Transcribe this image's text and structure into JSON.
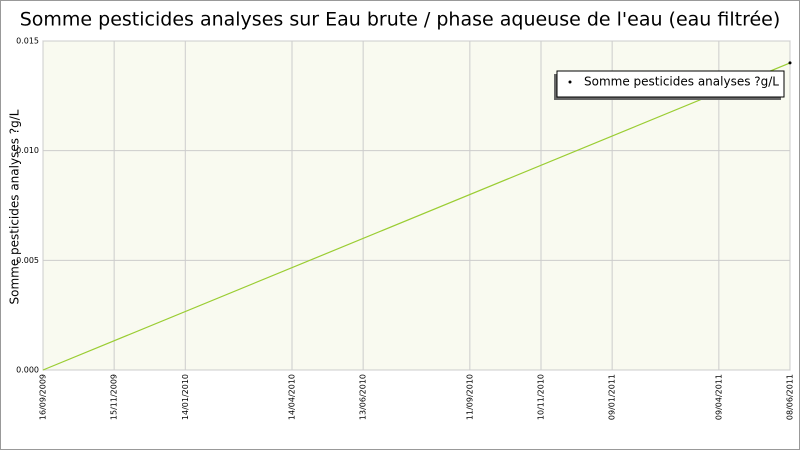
{
  "chart_data": {
    "type": "line",
    "title": "Somme pesticides analyses sur Eau brute / phase aqueuse de l'eau (eau filtrée)",
    "ylabel": "Somme pesticides analyses ?g/L",
    "x": [
      "16/09/2009",
      "08/06/2011"
    ],
    "series": [
      {
        "name": "Somme pesticides analyses ?g/L",
        "color": "#9acd32",
        "values": [
          0,
          0.014
        ]
      }
    ],
    "xlim": [
      "16/09/2009",
      "08/06/2011"
    ],
    "xticks": [
      "16/09/2009",
      "15/11/2009",
      "14/01/2010",
      "14/04/2010",
      "13/06/2010",
      "11/09/2010",
      "10/11/2010",
      "09/01/2011",
      "09/04/2011",
      "08/06/2011"
    ],
    "ylim": [
      0,
      0.015
    ],
    "yticks": [
      {
        "value": 0,
        "label": "0.000"
      },
      {
        "value": 0.005,
        "label": "0.005"
      },
      {
        "value": 0.01,
        "label": "0.010"
      },
      {
        "value": 0.015,
        "label": "0.015"
      }
    ],
    "grid": true,
    "legend": "upper right"
  }
}
